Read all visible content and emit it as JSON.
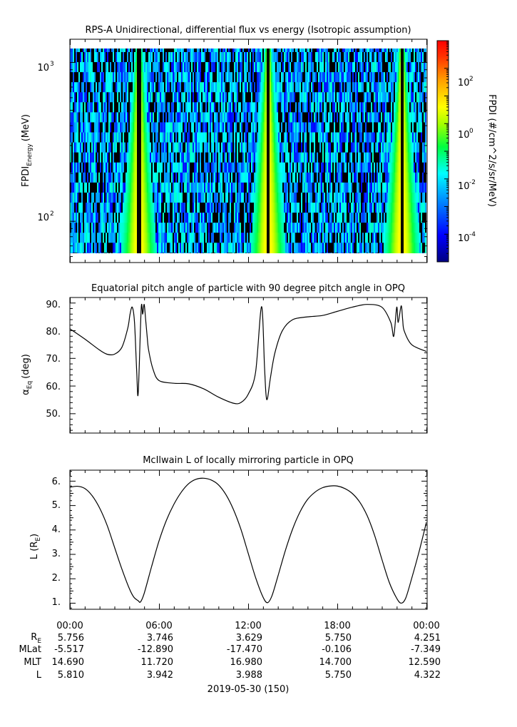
{
  "panel1": {
    "title": "RPS-A Unidirectional, differential flux vs energy (Isotropic assumption)",
    "ylabel_main": "FPDI",
    "ylabel_sub": "Energy",
    "ylabel_unit": "(MeV)",
    "ytick_base": "10",
    "ytick_exps": [
      "3",
      "2"
    ],
    "colorbar_label": "FPDI (#/cm^2/s/sr/MeV)",
    "colorbar_tick_exps": [
      "2",
      "0",
      "-2",
      "-4"
    ]
  },
  "panel2": {
    "title": "Equatorial pitch angle of particle with 90 degree pitch angle in OPQ",
    "ylabel_main": "α",
    "ylabel_sub": "Eq",
    "ylabel_unit": "(deg)",
    "yticks": [
      "90.",
      "80.",
      "70.",
      "60.",
      "50."
    ]
  },
  "panel3": {
    "title": "McIlwain L of locally mirroring particle in OPQ",
    "ylabel_main": "L (R",
    "ylabel_sub": "E",
    "ylabel_close": ")",
    "yticks": [
      "6.",
      "5.",
      "4.",
      "3.",
      "2.",
      "1."
    ]
  },
  "xticks": [
    "00:00",
    "06:00",
    "12:00",
    "18:00",
    "00:00"
  ],
  "ephemeris": {
    "row_labels": [
      "RE",
      "MLat",
      "MLT",
      "L"
    ],
    "rows": [
      [
        "5.756",
        "3.746",
        "3.629",
        "5.750",
        "4.251"
      ],
      [
        "-5.517",
        "-12.890",
        "-17.470",
        "-0.106",
        "-7.349"
      ],
      [
        "14.690",
        "11.720",
        "16.980",
        "14.700",
        "12.590"
      ],
      [
        "5.810",
        "3.942",
        "3.988",
        "5.750",
        "4.322"
      ]
    ]
  },
  "date_label": "2019-05-30 (150)",
  "chart_data": [
    {
      "type": "heatmap",
      "title": "RPS-A Unidirectional, differential flux vs energy (Isotropic assumption)",
      "x_range_hours": [
        0,
        24
      ],
      "y_scale": "log",
      "y_range": [
        55,
        1400
      ],
      "ylabel": "FPDI Energy (MeV)",
      "colorbar": {
        "scale": "log",
        "range_exp": [
          -5,
          3
        ],
        "label": "FPDI (#/cm^2/s/sr/MeV)",
        "colormap": "rainbow"
      },
      "high_flux_passes_hours": [
        4.6,
        13.3,
        22.3
      ]
    },
    {
      "type": "line",
      "title": "Equatorial pitch angle of particle with 90 degree pitch angle in OPQ",
      "ylabel": "αEq (deg)",
      "ylim": [
        43,
        92
      ],
      "x_hours": [
        0,
        1,
        2,
        2.5,
        3,
        3.5,
        3.9,
        4.05,
        4.2,
        4.35,
        4.5,
        4.6,
        4.8,
        4.9,
        5.0,
        5.1,
        5.2,
        5.3,
        5.6,
        6,
        7,
        8,
        9,
        10,
        11,
        11.5,
        12,
        12.5,
        12.9,
        13.1,
        13.2,
        13.3,
        13.5,
        13.8,
        14.3,
        15,
        16,
        17,
        18,
        19,
        20,
        21,
        21.6,
        21.8,
        22.0,
        22.1,
        22.3,
        22.4,
        22.5,
        23,
        24
      ],
      "y_deg": [
        80.7,
        77,
        73,
        71.5,
        71.5,
        74,
        81,
        86,
        88.5,
        83,
        65,
        57.5,
        88,
        86,
        89.5,
        84,
        78,
        73,
        66,
        62,
        61,
        60.8,
        59,
        56,
        53.8,
        54,
        57,
        65,
        88.7,
        67,
        57,
        55.5,
        63,
        72,
        80,
        84,
        85,
        85.5,
        87,
        88.5,
        89.5,
        88.5,
        83,
        78,
        88.5,
        83,
        89,
        84,
        80,
        75,
        72.5
      ]
    },
    {
      "type": "line",
      "title": "McIlwain L of locally mirroring particle in OPQ",
      "ylabel": "L (RE)",
      "ylim": [
        0.75,
        6.45
      ],
      "x_hours": [
        0,
        0.5,
        1,
        1.5,
        2,
        2.5,
        3,
        3.5,
        4,
        4.3,
        4.6,
        4.75,
        5,
        5.5,
        6,
        6.5,
        7,
        7.5,
        8,
        8.5,
        9,
        9.5,
        10,
        10.5,
        11,
        11.5,
        12,
        12.5,
        13,
        13.3,
        13.6,
        14,
        14.5,
        15,
        15.5,
        16,
        16.5,
        17,
        17.5,
        18,
        18.5,
        19,
        19.5,
        20,
        20.5,
        21,
        21.5,
        22,
        22.3,
        22.6,
        23,
        23.5,
        24
      ],
      "y_RE": [
        5.75,
        5.79,
        5.7,
        5.4,
        4.9,
        4.2,
        3.3,
        2.4,
        1.6,
        1.25,
        1.1,
        1.05,
        1.4,
        2.5,
        3.55,
        4.4,
        5.05,
        5.55,
        5.9,
        6.08,
        6.12,
        6.05,
        5.85,
        5.45,
        4.85,
        4.05,
        3.05,
        2.05,
        1.25,
        1.02,
        1.3,
        2.1,
        3.15,
        4.05,
        4.75,
        5.25,
        5.55,
        5.73,
        5.8,
        5.8,
        5.7,
        5.5,
        5.15,
        4.6,
        3.8,
        2.8,
        1.85,
        1.2,
        1.0,
        1.2,
        2.0,
        3.1,
        4.32
      ]
    }
  ]
}
